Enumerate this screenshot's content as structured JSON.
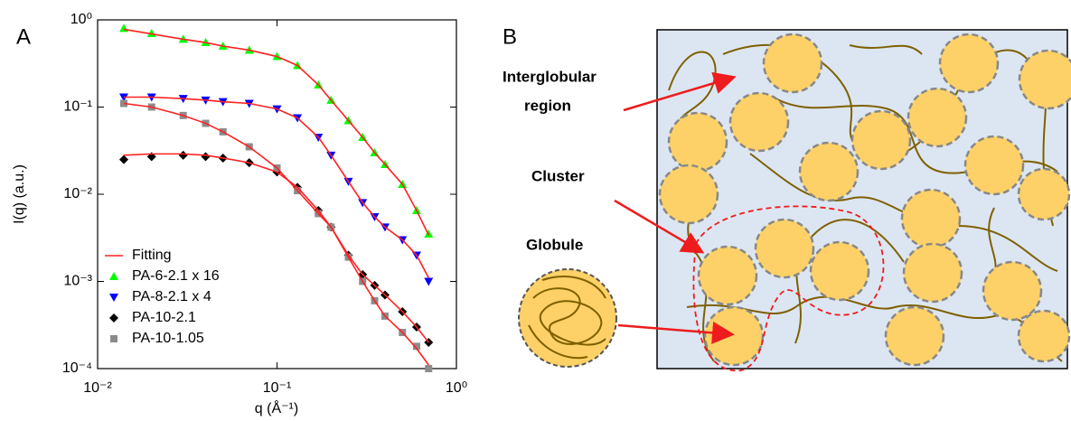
{
  "chart_data": {
    "type": "scatter",
    "panel_label": "A",
    "xlabel": "q (Å⁻¹)",
    "ylabel": "I(q) (a.u.)",
    "xscale": "log",
    "yscale": "log",
    "xlim": [
      0.01,
      1
    ],
    "ylim": [
      0.0001,
      1
    ],
    "xticks": [
      {
        "value": 0.01,
        "label": "10⁻²"
      },
      {
        "value": 0.1,
        "label": "10⁻¹"
      },
      {
        "value": 1,
        "label": "10⁰"
      }
    ],
    "yticks": [
      {
        "value": 0.0001,
        "label": "10⁻⁴"
      },
      {
        "value": 0.001,
        "label": "10⁻³"
      },
      {
        "value": 0.01,
        "label": "10⁻²"
      },
      {
        "value": 0.1,
        "label": "10⁻¹"
      },
      {
        "value": 1,
        "label": "10⁰"
      }
    ],
    "x": [
      0.014,
      0.02,
      0.03,
      0.04,
      0.05,
      0.07,
      0.1,
      0.13,
      0.17,
      0.2,
      0.25,
      0.3,
      0.35,
      0.4,
      0.5,
      0.6,
      0.7
    ],
    "series": [
      {
        "name": "PA-6-2.1 x 16",
        "color": "#00ff00",
        "marker": "triangle-up",
        "values": [
          0.8,
          0.7,
          0.6,
          0.55,
          0.5,
          0.45,
          0.38,
          0.3,
          0.18,
          0.12,
          0.07,
          0.045,
          0.03,
          0.022,
          0.013,
          0.0065,
          0.0035
        ]
      },
      {
        "name": "PA-8-2.1 x 4",
        "color": "#0000ff",
        "marker": "triangle-down",
        "values": [
          0.13,
          0.13,
          0.125,
          0.12,
          0.115,
          0.11,
          0.095,
          0.075,
          0.045,
          0.028,
          0.014,
          0.008,
          0.0055,
          0.0042,
          0.003,
          0.002,
          0.001
        ]
      },
      {
        "name": "PA-10-2.1",
        "color": "#000000",
        "marker": "diamond",
        "values": [
          0.025,
          0.027,
          0.028,
          0.027,
          0.026,
          0.023,
          0.018,
          0.012,
          0.0065,
          0.0042,
          0.002,
          0.0012,
          0.0009,
          0.0007,
          0.00045,
          0.0003,
          0.0002
        ]
      },
      {
        "name": "PA-10-1.05",
        "color": "#8c8c8c",
        "marker": "square",
        "values": [
          0.11,
          0.1,
          0.08,
          0.065,
          0.052,
          0.035,
          0.02,
          0.011,
          0.006,
          0.0042,
          0.0019,
          0.001,
          0.0006,
          0.0004,
          0.00026,
          0.00018,
          0.0001
        ]
      }
    ],
    "fit": {
      "name": "Fitting",
      "color": "#ff2020",
      "lines": [
        [
          0.78,
          0.69,
          0.6,
          0.55,
          0.5,
          0.45,
          0.38,
          0.3,
          0.18,
          0.12,
          0.07,
          0.045,
          0.03,
          0.022,
          0.013,
          0.0065,
          0.0034
        ],
        [
          0.13,
          0.13,
          0.125,
          0.12,
          0.115,
          0.11,
          0.095,
          0.075,
          0.045,
          0.028,
          0.014,
          0.008,
          0.0055,
          0.0042,
          0.003,
          0.002,
          0.0011
        ],
        [
          0.028,
          0.029,
          0.029,
          0.028,
          0.026,
          0.023,
          0.018,
          0.012,
          0.0065,
          0.0042,
          0.002,
          0.0012,
          0.0009,
          0.0007,
          0.00045,
          0.0003,
          0.0002
        ],
        [
          0.11,
          0.1,
          0.08,
          0.065,
          0.052,
          0.035,
          0.02,
          0.011,
          0.006,
          0.0042,
          0.0019,
          0.001,
          0.0006,
          0.0004,
          0.00026,
          0.00017,
          0.00011
        ]
      ]
    },
    "legend": "lower left"
  },
  "diagram": {
    "panel_label": "B",
    "interglobular": "Interglobular",
    "region": "region",
    "cluster": "Cluster",
    "globule": "Globule"
  }
}
